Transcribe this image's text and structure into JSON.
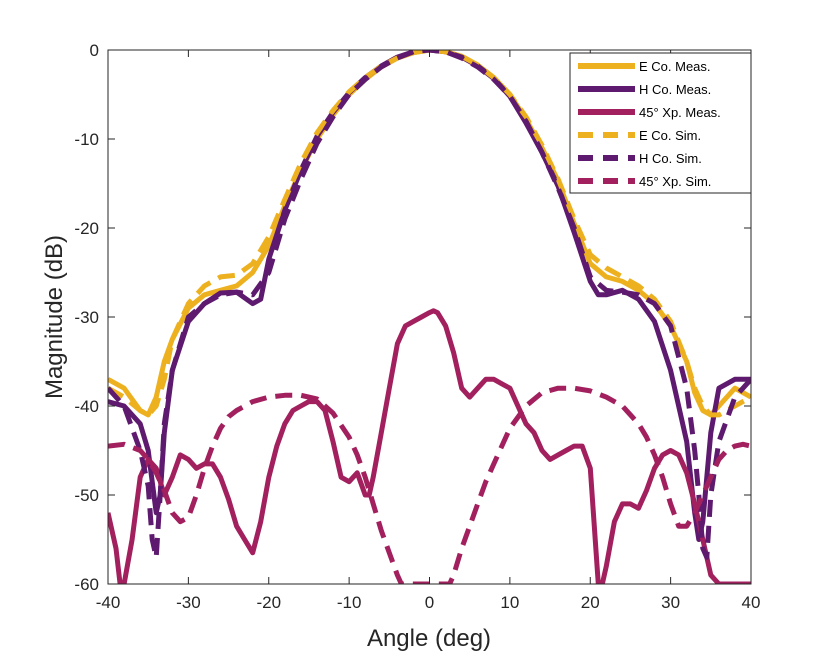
{
  "chart_data": {
    "type": "line",
    "title": "",
    "xlabel": "Angle (deg)",
    "ylabel": "Magnitude (dB)",
    "xlim": [
      -40,
      40
    ],
    "ylim": [
      -60,
      0
    ],
    "xticks": [
      -40,
      -30,
      -20,
      -10,
      0,
      10,
      20,
      30,
      40
    ],
    "yticks": [
      0,
      -10,
      -20,
      -30,
      -40,
      -50,
      -60
    ],
    "grid": false,
    "legend_position": "top-right",
    "series": [
      {
        "name": "E Co. Meas.",
        "color": "#EDB120",
        "style": "solid",
        "x": [
          -40,
          -38,
          -36,
          -35,
          -34,
          -33,
          -32,
          -30,
          -28,
          -26,
          -24,
          -22,
          -20,
          -18,
          -16,
          -14,
          -12,
          -10,
          -8,
          -6,
          -4,
          -2,
          0,
          2,
          4,
          6,
          8,
          10,
          12,
          14,
          16,
          18,
          20,
          22,
          24,
          26,
          28,
          30,
          32,
          33,
          34,
          35,
          36,
          38,
          40
        ],
        "y": [
          -37,
          -38,
          -40.5,
          -41,
          -39,
          -35,
          -32.5,
          -29,
          -27.5,
          -27,
          -26.5,
          -25,
          -22,
          -17.5,
          -13.5,
          -10,
          -7.3,
          -5,
          -3.3,
          -1.9,
          -0.9,
          -0.3,
          0,
          -0.2,
          -0.7,
          -1.7,
          -3.1,
          -5,
          -7.8,
          -11,
          -14.7,
          -19.5,
          -24,
          -25.5,
          -26,
          -27,
          -28.5,
          -31,
          -35,
          -38.5,
          -40.5,
          -41,
          -40,
          -38,
          -39
        ]
      },
      {
        "name": "H Co. Meas.",
        "color": "#5E1A6E",
        "style": "solid",
        "x": [
          -40,
          -38,
          -36,
          -35,
          -34,
          -33.5,
          -33,
          -32,
          -30,
          -28,
          -26,
          -24,
          -22,
          -21,
          -20,
          -18,
          -16,
          -14,
          -12,
          -10,
          -8,
          -6,
          -4,
          -2,
          0,
          2,
          4,
          6,
          8,
          10,
          12,
          14,
          16,
          18,
          20,
          21,
          22,
          24,
          26,
          28,
          30,
          32,
          33,
          33.5,
          34,
          35,
          36,
          38,
          40
        ],
        "y": [
          -39.5,
          -40,
          -42,
          -45,
          -52,
          -50,
          -43,
          -36,
          -30.5,
          -28.5,
          -27.3,
          -27.2,
          -28.5,
          -28,
          -23.5,
          -18,
          -13.5,
          -9.7,
          -7,
          -4.8,
          -3.1,
          -1.8,
          -0.8,
          -0.2,
          0,
          -0.2,
          -0.8,
          -1.8,
          -3.2,
          -5.2,
          -8.2,
          -11.5,
          -15.3,
          -20.5,
          -26,
          -27.5,
          -27.5,
          -27,
          -28,
          -30.5,
          -36,
          -44,
          -52,
          -55,
          -53,
          -43,
          -38,
          -37,
          -37
        ]
      },
      {
        "name": "45° Xp. Meas.",
        "color": "#A2205E",
        "style": "solid",
        "x": [
          -40,
          -39,
          -38.5,
          -38,
          -37,
          -36,
          -35,
          -34,
          -33,
          -32,
          -31,
          -30,
          -29,
          -28,
          -27,
          -26,
          -25,
          -24,
          -23,
          -22,
          -21,
          -20,
          -19,
          -18,
          -17,
          -16,
          -15,
          -14,
          -13,
          -12,
          -11,
          -10,
          -9,
          -8,
          -7.5,
          -7,
          -6,
          -5,
          -4,
          -3,
          -2,
          -1,
          0,
          0.5,
          1,
          2,
          3,
          4,
          5,
          6,
          7,
          8,
          9,
          10,
          11,
          12,
          13,
          14,
          15,
          16,
          17,
          18,
          19,
          20,
          21,
          21.5,
          22,
          23,
          24,
          25,
          26,
          27,
          28,
          29,
          30,
          31,
          32,
          33,
          34,
          35,
          36,
          37,
          38,
          39,
          40
        ],
        "y": [
          -52,
          -56,
          -60,
          -60,
          -55,
          -48,
          -46,
          -47,
          -50,
          -48,
          -45.5,
          -46,
          -47,
          -46.5,
          -46.5,
          -48,
          -50.5,
          -53.5,
          -55,
          -56.5,
          -53,
          -48,
          -44.5,
          -42,
          -40.5,
          -40,
          -39.5,
          -39.5,
          -40.5,
          -44,
          -48,
          -48.5,
          -47.5,
          -50,
          -50,
          -48,
          -43,
          -38,
          -33,
          -31,
          -30.5,
          -30,
          -29.5,
          -29.3,
          -29.5,
          -31,
          -34,
          -38,
          -39,
          -38,
          -37,
          -37,
          -37.5,
          -38,
          -40,
          -42,
          -43,
          -45,
          -46,
          -45.5,
          -45,
          -44.5,
          -44.5,
          -47,
          -60,
          -60,
          -58,
          -53,
          -51,
          -51,
          -51.5,
          -49.5,
          -47,
          -45.5,
          -45,
          -45.5,
          -47.5,
          -51,
          -55,
          -59,
          -60,
          -60,
          -60,
          -60,
          -60
        ]
      },
      {
        "name": "E Co. Sim.",
        "color": "#EDB120",
        "style": "dashed",
        "x": [
          -40,
          -38,
          -36,
          -35,
          -34,
          -33,
          -32,
          -30,
          -28,
          -26,
          -24,
          -22,
          -20,
          -18,
          -16,
          -14,
          -12,
          -10,
          -8,
          -6,
          -4,
          -2,
          0,
          2,
          4,
          6,
          8,
          10,
          12,
          14,
          16,
          18,
          20,
          22,
          24,
          26,
          28,
          30,
          32,
          33,
          34,
          35,
          36,
          38,
          40
        ],
        "y": [
          -38,
          -39,
          -40.5,
          -41,
          -40,
          -37,
          -32.5,
          -28.5,
          -26.5,
          -25.5,
          -25.3,
          -24,
          -21,
          -16.8,
          -12.7,
          -9.3,
          -6.8,
          -4.7,
          -3.1,
          -1.8,
          -0.9,
          -0.3,
          0,
          -0.2,
          -0.7,
          -1.7,
          -3.1,
          -5,
          -7.5,
          -10.7,
          -14.5,
          -19,
          -23,
          -24.5,
          -25.5,
          -26.5,
          -28,
          -30.5,
          -35,
          -38,
          -40,
          -41,
          -41,
          -40,
          -39
        ]
      },
      {
        "name": "H Co. Sim.",
        "color": "#5E1A6E",
        "style": "dashed",
        "x": [
          -40,
          -38,
          -36,
          -35,
          -34.5,
          -34,
          -33.5,
          -33,
          -32,
          -30,
          -28,
          -26,
          -24,
          -22,
          -20,
          -18,
          -16,
          -14,
          -12,
          -10,
          -8,
          -6,
          -4,
          -2,
          0,
          2,
          4,
          6,
          8,
          10,
          12,
          14,
          16,
          18,
          20,
          22,
          24,
          26,
          28,
          30,
          32,
          33,
          33.5,
          34,
          34.5,
          35,
          36,
          38,
          40
        ],
        "y": [
          -38,
          -40,
          -45,
          -49,
          -55,
          -57,
          -50,
          -42,
          -36,
          -30,
          -28.5,
          -27.5,
          -27.2,
          -27.5,
          -25,
          -19,
          -14.5,
          -10.5,
          -7.5,
          -5,
          -3.3,
          -1.9,
          -0.9,
          -0.2,
          0,
          -0.2,
          -0.9,
          -1.9,
          -3.3,
          -5.2,
          -8,
          -11.5,
          -15.5,
          -20,
          -25.5,
          -27,
          -27.2,
          -27.5,
          -28.5,
          -31,
          -38,
          -45,
          -50,
          -56,
          -57,
          -50,
          -44,
          -39,
          -37
        ]
      },
      {
        "name": "45° Xp. Sim.",
        "color": "#A2205E",
        "style": "dashed",
        "x": [
          -40,
          -38,
          -36,
          -35,
          -34,
          -33,
          -32,
          -31,
          -30,
          -29,
          -28,
          -27,
          -26,
          -25,
          -24,
          -22,
          -20,
          -18,
          -16,
          -14,
          -12,
          -10,
          -9,
          -8,
          -7,
          -6,
          -5,
          -4,
          -3.5,
          2.5,
          3,
          4,
          5,
          6,
          7,
          8,
          9,
          10,
          12,
          14,
          16,
          18,
          20,
          22,
          24,
          26,
          27,
          28,
          29,
          30,
          31,
          32,
          33,
          34,
          35,
          36,
          37,
          38,
          39,
          40
        ],
        "y": [
          -44.5,
          -44.3,
          -45,
          -46,
          -47.5,
          -49.5,
          -52,
          -53,
          -52.5,
          -50,
          -47,
          -44.5,
          -42.5,
          -41.2,
          -40.5,
          -39.5,
          -39,
          -38.8,
          -38.8,
          -39.2,
          -40.8,
          -43.5,
          -45.5,
          -48,
          -51,
          -54,
          -56.5,
          -59,
          -60,
          -60,
          -59,
          -56,
          -53.5,
          -51,
          -48.5,
          -46.5,
          -44.5,
          -42.5,
          -40,
          -38.5,
          -38,
          -38,
          -38.3,
          -39,
          -40,
          -42,
          -43.5,
          -45.5,
          -48,
          -51,
          -53.5,
          -53.5,
          -52,
          -50,
          -48,
          -46,
          -45,
          -44.5,
          -44.3,
          -44.5
        ]
      }
    ]
  }
}
